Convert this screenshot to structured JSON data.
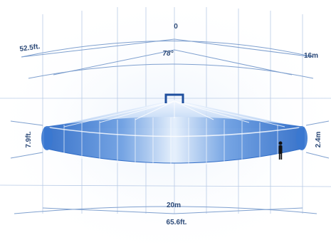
{
  "diagram": {
    "labels": {
      "top_angle_origin": "0",
      "coverage_angle": "78°",
      "depth_ft": "52.5ft.",
      "depth_m": "16m",
      "height_ft": "7.9ft.",
      "height_m": "2.4m",
      "width_m": "20m",
      "width_ft": "65.6ft."
    },
    "colors": {
      "line": "#7fa0cf",
      "line_dark": "#3f6fb3",
      "beam_light": "#d9e8fb",
      "beam_mid": "#8fb8ec",
      "beam_dark": "#3a78d0",
      "text": "#2d4a78",
      "person": "#111111"
    },
    "icons": {
      "access_point": "ceiling-access-point-icon",
      "person": "standing-person-icon"
    }
  }
}
